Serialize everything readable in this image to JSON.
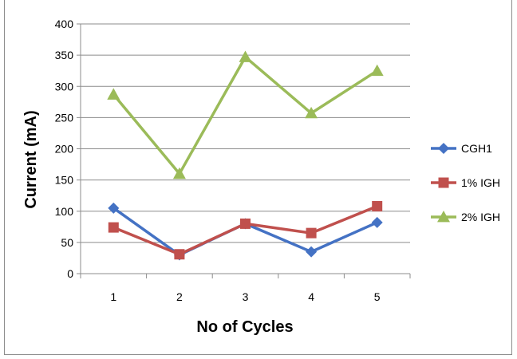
{
  "chart_data": {
    "type": "line",
    "title": "",
    "xlabel": "No of Cycles",
    "ylabel": "Current (mA)",
    "categories": [
      "1",
      "2",
      "3",
      "4",
      "5"
    ],
    "ylim": [
      0,
      400
    ],
    "yticks": [
      0,
      50,
      100,
      150,
      200,
      250,
      300,
      350,
      400
    ],
    "grid": true,
    "legend_position": "right",
    "series": [
      {
        "name": "CGH1",
        "color": "#4472C4",
        "marker": "diamond",
        "values": [
          105,
          30,
          80,
          35,
          82
        ]
      },
      {
        "name": "1% IGH",
        "color": "#C0504D",
        "marker": "square",
        "values": [
          74,
          31,
          80,
          65,
          108
        ]
      },
      {
        "name": "2% IGH",
        "color": "#9BBB59",
        "marker": "triangle",
        "values": [
          287,
          160,
          347,
          257,
          325
        ]
      }
    ]
  }
}
